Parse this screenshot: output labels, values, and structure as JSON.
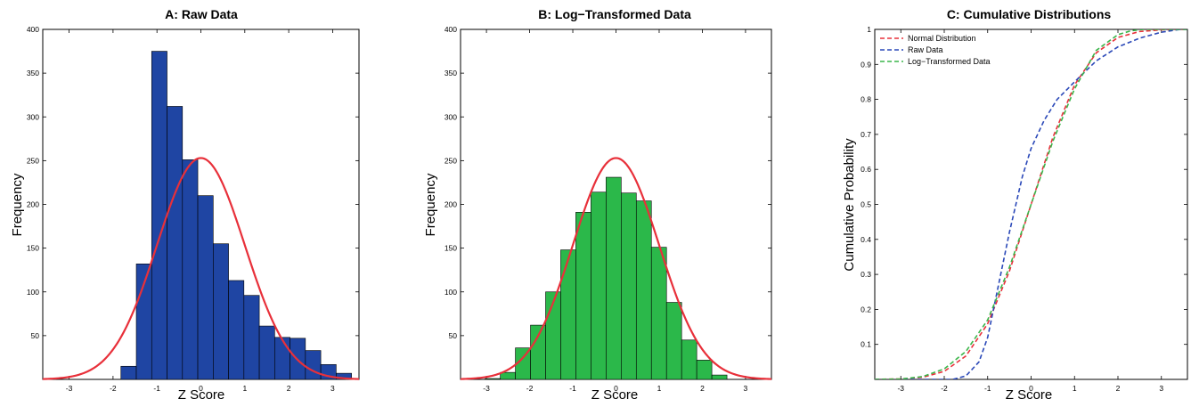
{
  "chart_data": [
    {
      "type": "bar",
      "title": "A: Raw Data",
      "xlabel": "Z Score",
      "ylabel": "Frequency",
      "xlim": [
        -3.6,
        3.6
      ],
      "ylim": [
        0,
        400
      ],
      "xticks": [
        "-3",
        "-2",
        "-1",
        "0",
        "1",
        "2",
        "3"
      ],
      "yticks": [
        "50",
        "100",
        "150",
        "200",
        "250",
        "300",
        "350",
        "400"
      ],
      "bar_color": "#1f45a3",
      "curve_color": "#e8303a",
      "bins": [
        {
          "x0": -1.82,
          "x1": -1.47,
          "value": 15
        },
        {
          "x0": -1.47,
          "x1": -1.12,
          "value": 132
        },
        {
          "x0": -1.12,
          "x1": -0.77,
          "value": 375
        },
        {
          "x0": -0.77,
          "x1": -0.42,
          "value": 312
        },
        {
          "x0": -0.42,
          "x1": -0.07,
          "value": 251
        },
        {
          "x0": -0.07,
          "x1": 0.28,
          "value": 210
        },
        {
          "x0": 0.28,
          "x1": 0.63,
          "value": 155
        },
        {
          "x0": 0.63,
          "x1": 0.98,
          "value": 113
        },
        {
          "x0": 0.98,
          "x1": 1.33,
          "value": 96
        },
        {
          "x0": 1.33,
          "x1": 1.68,
          "value": 61
        },
        {
          "x0": 1.68,
          "x1": 2.03,
          "value": 48
        },
        {
          "x0": 2.03,
          "x1": 2.38,
          "value": 47
        },
        {
          "x0": 2.38,
          "x1": 2.73,
          "value": 33
        },
        {
          "x0": 2.73,
          "x1": 3.08,
          "value": 17
        },
        {
          "x0": 3.08,
          "x1": 3.43,
          "value": 7
        }
      ],
      "normal_curve": {
        "mean": 0,
        "sd": 1,
        "peak": 253
      }
    },
    {
      "type": "bar",
      "title": "B: Log−Transformed Data",
      "xlabel": "Z Score",
      "ylabel": "Frequency",
      "xlim": [
        -3.6,
        3.6
      ],
      "ylim": [
        0,
        400
      ],
      "xticks": [
        "-3",
        "-2",
        "-1",
        "0",
        "1",
        "2",
        "3"
      ],
      "yticks": [
        "50",
        "100",
        "150",
        "200",
        "250",
        "300",
        "350",
        "400"
      ],
      "bar_color": "#2bb84a",
      "curve_color": "#e8303a",
      "bins": [
        {
          "x0": -3.03,
          "x1": -2.68,
          "value": 1
        },
        {
          "x0": -2.68,
          "x1": -2.33,
          "value": 8
        },
        {
          "x0": -2.33,
          "x1": -1.98,
          "value": 36
        },
        {
          "x0": -1.98,
          "x1": -1.63,
          "value": 62
        },
        {
          "x0": -1.63,
          "x1": -1.28,
          "value": 100
        },
        {
          "x0": -1.28,
          "x1": -0.93,
          "value": 148
        },
        {
          "x0": -0.93,
          "x1": -0.58,
          "value": 191
        },
        {
          "x0": -0.58,
          "x1": -0.23,
          "value": 214
        },
        {
          "x0": -0.23,
          "x1": 0.12,
          "value": 231
        },
        {
          "x0": 0.12,
          "x1": 0.47,
          "value": 213
        },
        {
          "x0": 0.47,
          "x1": 0.82,
          "value": 204
        },
        {
          "x0": 0.82,
          "x1": 1.17,
          "value": 151
        },
        {
          "x0": 1.17,
          "x1": 1.52,
          "value": 88
        },
        {
          "x0": 1.52,
          "x1": 1.87,
          "value": 45
        },
        {
          "x0": 1.87,
          "x1": 2.22,
          "value": 22
        },
        {
          "x0": 2.22,
          "x1": 2.57,
          "value": 5
        }
      ],
      "normal_curve": {
        "mean": 0,
        "sd": 1,
        "peak": 253
      }
    },
    {
      "type": "line",
      "title": "C: Cumulative Distributions",
      "xlabel": "Z Score",
      "ylabel": "Cumulative Probability",
      "xlim": [
        -3.6,
        3.6
      ],
      "ylim": [
        0,
        1
      ],
      "xticks": [
        "-3",
        "-2",
        "-1",
        "0",
        "1",
        "2",
        "3"
      ],
      "yticks": [
        "0.1",
        "0.2",
        "0.3",
        "0.4",
        "0.5",
        "0.6",
        "0.7",
        "0.8",
        "0.9",
        "1"
      ],
      "legend_position": "top-left",
      "line_style": "dashed",
      "series": [
        {
          "name": "Normal Distribution",
          "color": "#e8303a",
          "x": [
            -3.6,
            -3,
            -2.5,
            -2,
            -1.5,
            -1,
            -0.5,
            0,
            0.5,
            1,
            1.5,
            2,
            2.5,
            3,
            3.6
          ],
          "y": [
            0.0002,
            0.0013,
            0.006,
            0.023,
            0.067,
            0.159,
            0.309,
            0.5,
            0.691,
            0.841,
            0.933,
            0.977,
            0.994,
            0.9987,
            1.0
          ]
        },
        {
          "name": "Raw Data",
          "color": "#2a48b8",
          "x": [
            -3.6,
            -1.8,
            -1.5,
            -1.2,
            -1.0,
            -0.8,
            -0.5,
            -0.2,
            0,
            0.3,
            0.6,
            1.0,
            1.5,
            2.0,
            2.5,
            3.0,
            3.43,
            3.6
          ],
          "y": [
            0,
            0,
            0.01,
            0.05,
            0.12,
            0.24,
            0.42,
            0.58,
            0.66,
            0.74,
            0.8,
            0.85,
            0.91,
            0.95,
            0.975,
            0.992,
            1.0,
            1.0
          ]
        },
        {
          "name": "Log−Transformed Data",
          "color": "#3ab54a",
          "x": [
            -3.6,
            -3,
            -2.5,
            -2,
            -1.5,
            -1,
            -0.5,
            0,
            0.5,
            1,
            1.5,
            2,
            2.3,
            2.6,
            3.6
          ],
          "y": [
            0,
            0.001,
            0.008,
            0.03,
            0.08,
            0.17,
            0.32,
            0.5,
            0.68,
            0.83,
            0.94,
            0.985,
            0.996,
            1.0,
            1.0
          ]
        }
      ]
    }
  ]
}
